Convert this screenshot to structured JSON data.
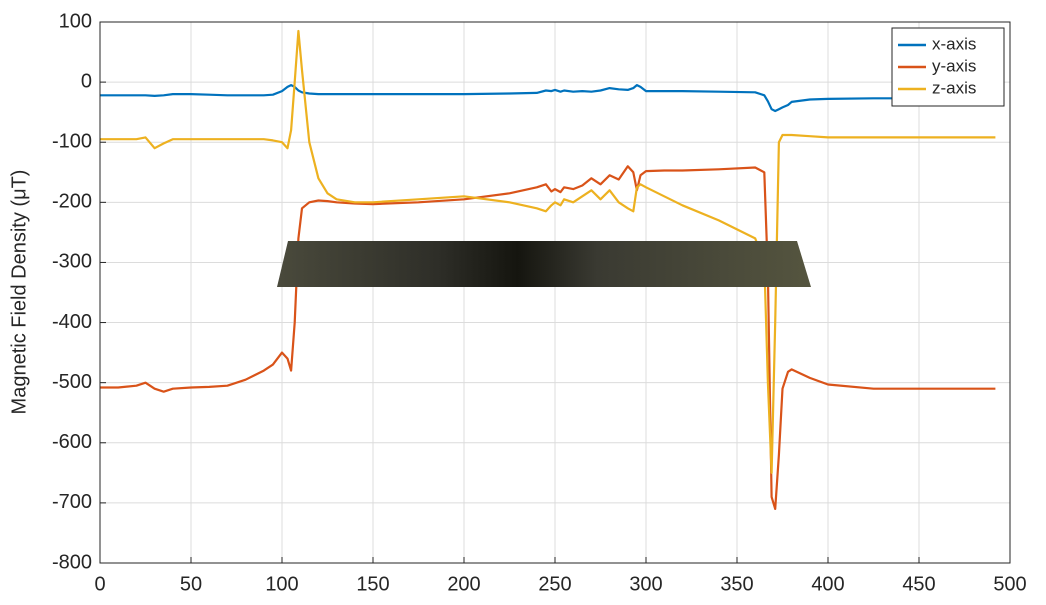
{
  "chart_data": {
    "type": "line",
    "ylabel": "Magnetic Field Density (μT)",
    "x": [
      0,
      10,
      20,
      25,
      30,
      35,
      40,
      50,
      60,
      70,
      80,
      90,
      95,
      100,
      103,
      105,
      107,
      109,
      111,
      115,
      120,
      125,
      130,
      140,
      150,
      175,
      200,
      225,
      240,
      245,
      248,
      250,
      253,
      255,
      260,
      265,
      270,
      275,
      280,
      285,
      290,
      293,
      295,
      297,
      300,
      310,
      320,
      340,
      360,
      365,
      367,
      369,
      371,
      373,
      375,
      378,
      380,
      390,
      400,
      425,
      450,
      475,
      492
    ],
    "series": [
      {
        "name": "x-axis",
        "color": "#0072bd",
        "values": [
          -22,
          -22,
          -22,
          -22,
          -23,
          -22,
          -20,
          -20,
          -21,
          -22,
          -22,
          -22,
          -21,
          -15,
          -8,
          -5,
          -8,
          -14,
          -17,
          -19,
          -20,
          -20,
          -20,
          -20,
          -20,
          -20,
          -20,
          -19,
          -18,
          -14,
          -15,
          -13,
          -16,
          -14,
          -16,
          -15,
          -16,
          -14,
          -10,
          -12,
          -13,
          -10,
          -5,
          -8,
          -15,
          -15,
          -15,
          -16,
          -17,
          -22,
          -32,
          -45,
          -48,
          -45,
          -42,
          -38,
          -33,
          -29,
          -28,
          -27,
          -27,
          -27,
          -27
        ]
      },
      {
        "name": "y-axis",
        "color": "#d95319",
        "values": [
          -508,
          -508,
          -505,
          -500,
          -510,
          -515,
          -510,
          -508,
          -507,
          -505,
          -495,
          -480,
          -470,
          -450,
          -460,
          -480,
          -400,
          -260,
          -210,
          -200,
          -197,
          -198,
          -200,
          -202,
          -203,
          -200,
          -195,
          -185,
          -175,
          -170,
          -182,
          -178,
          -183,
          -175,
          -178,
          -172,
          -160,
          -170,
          -155,
          -162,
          -140,
          -150,
          -180,
          -155,
          -148,
          -147,
          -147,
          -145,
          -142,
          -150,
          -320,
          -690,
          -710,
          -620,
          -510,
          -482,
          -478,
          -492,
          -503,
          -510,
          -510,
          -510,
          -510
        ]
      },
      {
        "name": "z-axis",
        "color": "#edb120",
        "values": [
          -95,
          -95,
          -95,
          -92,
          -110,
          -102,
          -95,
          -95,
          -95,
          -95,
          -95,
          -95,
          -97,
          -100,
          -110,
          -80,
          0,
          85,
          20,
          -100,
          -160,
          -185,
          -195,
          -200,
          -200,
          -195,
          -190,
          -200,
          -210,
          -215,
          -205,
          -200,
          -205,
          -195,
          -200,
          -190,
          -180,
          -195,
          -180,
          -200,
          -210,
          -215,
          -175,
          -170,
          -175,
          -190,
          -205,
          -230,
          -260,
          -300,
          -500,
          -650,
          -400,
          -100,
          -88,
          -88,
          -88,
          -90,
          -92,
          -92,
          -92,
          -92,
          -92
        ]
      }
    ],
    "xlim": [
      0,
      500
    ],
    "xticks": [
      0,
      50,
      100,
      150,
      200,
      250,
      300,
      350,
      400,
      450,
      500
    ],
    "ylim": [
      -800,
      100
    ],
    "yticks": [
      -800,
      -700,
      -600,
      -500,
      -400,
      -300,
      -200,
      -100,
      0,
      100
    ],
    "grid": true,
    "legend": "top-right"
  }
}
